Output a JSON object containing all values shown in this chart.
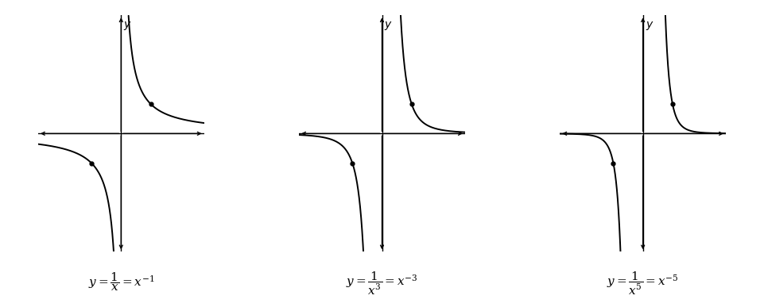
{
  "plots": [
    {
      "exponent": 1
    },
    {
      "exponent": 3
    },
    {
      "exponent": 5
    }
  ],
  "labels": [
    "$y = \\dfrac{1}{x} = x^{-1}$",
    "$y = \\dfrac{1}{x^3} = x^{-3}$",
    "$y = \\dfrac{1}{x^5} = x^{-5}$"
  ],
  "xlim": [
    -2.8,
    2.8
  ],
  "ylim": [
    -4.0,
    4.0
  ],
  "axis_color": "#000000",
  "curve_color": "#000000",
  "background_color": "#ffffff",
  "dot_color": "#000000",
  "dot_size": 3.5,
  "linewidth": 1.4,
  "axis_linewidth": 1.0,
  "arrow_size": 7,
  "label_fontsize": 11
}
